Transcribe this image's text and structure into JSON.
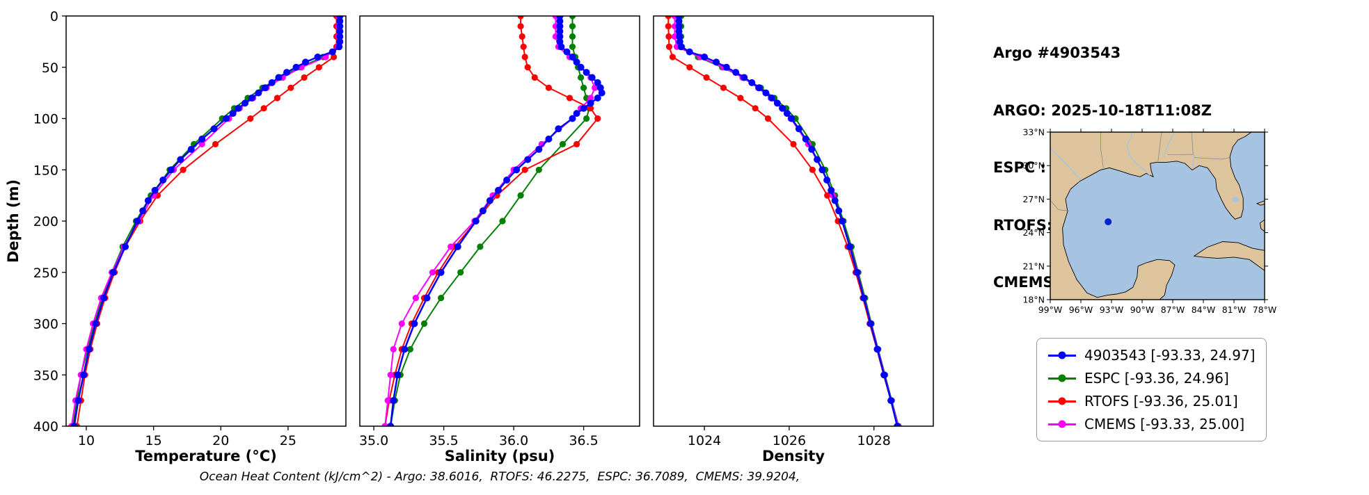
{
  "header": {
    "title": "Argo #4903543",
    "lines": [
      "ARGO: 2025-10-18T11:08Z",
      "ESPC : 2025-10-18T12:00Z",
      "RTOFS: 2025-10-18T12:00Z",
      "CMEMS: 2025-10-18T12:00Z"
    ]
  },
  "footer": "Ocean Heat Content (kJ/cm^2) - Argo: 38.6016,  RTOFS: 46.2275,  ESPC: 36.7089,  CMEMS: 39.9204,",
  "colors": {
    "argo": "#0000ff",
    "espc": "#008000",
    "rtofs": "#ff0000",
    "cmems": "#ff00ff"
  },
  "legend": {
    "items": [
      {
        "name": "4903543",
        "label": "4903543 [-93.33, 24.97]",
        "color": "#0000ff"
      },
      {
        "name": "ESPC",
        "label": "ESPC [-93.36, 24.96]",
        "color": "#008000"
      },
      {
        "name": "RTOFS",
        "label": "RTOFS [-93.36, 25.01]",
        "color": "#ff0000"
      },
      {
        "name": "CMEMS",
        "label": "CMEMS [-93.33, 25.00]",
        "color": "#ff00ff"
      }
    ]
  },
  "map": {
    "region": "Gulf of Mexico",
    "lon_range": [
      -99,
      -78
    ],
    "lat_range": [
      18,
      33
    ],
    "lat_ticks": [
      {
        "value": 33,
        "label": "33°N"
      },
      {
        "value": 30,
        "label": "30°N"
      },
      {
        "value": 27,
        "label": "27°N"
      },
      {
        "value": 24,
        "label": "24°N"
      },
      {
        "value": 21,
        "label": "21°N"
      },
      {
        "value": 18,
        "label": "18°N"
      }
    ],
    "lon_ticks": [
      {
        "value": -99,
        "label": "99°W"
      },
      {
        "value": -96,
        "label": "96°W"
      },
      {
        "value": -93,
        "label": "93°W"
      },
      {
        "value": -90,
        "label": "90°W"
      },
      {
        "value": -87,
        "label": "87°W"
      },
      {
        "value": -84,
        "label": "84°W"
      },
      {
        "value": -81,
        "label": "81°W"
      },
      {
        "value": -78,
        "label": "78°W"
      }
    ],
    "float_position": {
      "lon": -93.33,
      "lat": 24.97
    },
    "ocean_color": "#a6c3e1",
    "land_color": "#ddc49c",
    "float_color": "#0022cc"
  },
  "chart_data": [
    {
      "name": "temperature",
      "type": "line",
      "xlabel": "Temperature (°C)",
      "ylabel": "Depth (m)",
      "xlim": [
        8.5,
        29.3
      ],
      "ylim": [
        0,
        400
      ],
      "y_inverted": true,
      "grid": false,
      "xticks": [
        10,
        15,
        20,
        25
      ],
      "xtick_labels": [
        "10",
        "15",
        "20",
        "25"
      ],
      "yticks": [
        0,
        50,
        100,
        150,
        200,
        250,
        300,
        350,
        400
      ],
      "series": [
        {
          "name": "4903543",
          "color": "#0000ff",
          "zorder": 4,
          "line_width": 2.5,
          "marker_radius": 5,
          "depth": [
            0,
            5,
            10,
            15,
            20,
            25,
            30,
            35,
            40,
            45,
            50,
            55,
            60,
            65,
            70,
            75,
            80,
            85,
            90,
            95,
            100,
            110,
            120,
            130,
            140,
            150,
            160,
            170,
            180,
            190,
            200,
            225,
            250,
            275,
            300,
            325,
            350,
            375,
            400
          ],
          "values": [
            28.85,
            28.85,
            28.85,
            28.85,
            28.85,
            28.85,
            28.8,
            28.3,
            27.2,
            26.3,
            25.6,
            24.9,
            24.3,
            23.8,
            23.3,
            22.8,
            22.3,
            21.8,
            21.3,
            20.9,
            20.4,
            19.5,
            18.6,
            17.8,
            17.0,
            16.3,
            15.7,
            15.1,
            14.6,
            14.2,
            13.8,
            12.9,
            12.0,
            11.3,
            10.7,
            10.2,
            9.8,
            9.4,
            9.1
          ]
        },
        {
          "name": "ESPC",
          "color": "#008000",
          "zorder": 1,
          "line_width": 2,
          "marker_radius": 4.6,
          "depth": [
            0,
            10,
            20,
            30,
            40,
            50,
            60,
            70,
            80,
            90,
            100,
            125,
            150,
            175,
            200,
            225,
            250,
            275,
            300,
            325,
            350,
            375,
            400
          ],
          "values": [
            28.7,
            28.7,
            28.7,
            28.65,
            27.6,
            25.9,
            24.4,
            23.1,
            22.0,
            21.0,
            20.1,
            18.0,
            16.2,
            14.8,
            13.7,
            12.7,
            11.9,
            11.2,
            10.6,
            10.1,
            9.6,
            9.3,
            9.0
          ]
        },
        {
          "name": "RTOFS",
          "color": "#ff0000",
          "zorder": 2,
          "line_width": 2,
          "marker_radius": 4.6,
          "depth": [
            0,
            10,
            20,
            30,
            40,
            50,
            60,
            70,
            80,
            90,
            100,
            125,
            150,
            175,
            200,
            225,
            250,
            275,
            300,
            325,
            350,
            375,
            400
          ],
          "values": [
            28.6,
            28.6,
            28.6,
            28.6,
            28.4,
            27.3,
            26.2,
            25.2,
            24.2,
            23.2,
            22.2,
            19.6,
            17.2,
            15.3,
            14.0,
            12.9,
            12.1,
            11.4,
            10.8,
            10.3,
            9.9,
            9.6,
            9.3
          ]
        },
        {
          "name": "CMEMS",
          "color": "#ff00ff",
          "zorder": 3,
          "line_width": 2,
          "marker_radius": 4.6,
          "depth": [
            0,
            10,
            20,
            30,
            40,
            50,
            60,
            70,
            80,
            90,
            100,
            125,
            150,
            175,
            200,
            225,
            250,
            275,
            300,
            325,
            350,
            375,
            400
          ],
          "values": [
            28.75,
            28.75,
            28.75,
            28.7,
            27.8,
            26.0,
            24.6,
            23.4,
            22.4,
            21.4,
            20.6,
            18.6,
            16.5,
            15.0,
            13.9,
            12.8,
            11.9,
            11.1,
            10.5,
            10.0,
            9.6,
            9.2,
            8.9
          ]
        }
      ]
    },
    {
      "name": "salinity",
      "type": "line",
      "xlabel": "Salinity (psu)",
      "ylabel": "Depth (m)",
      "xlim": [
        34.9,
        36.9
      ],
      "ylim": [
        0,
        400
      ],
      "y_inverted": true,
      "grid": false,
      "xticks": [
        35.0,
        35.5,
        36.0,
        36.5
      ],
      "xtick_labels": [
        "35.0",
        "35.5",
        "36.0",
        "36.5"
      ],
      "yticks": [
        0,
        50,
        100,
        150,
        200,
        250,
        300,
        350,
        400
      ],
      "series": [
        {
          "name": "4903543",
          "color": "#0000ff",
          "zorder": 4,
          "line_width": 2.5,
          "marker_radius": 5,
          "depth": [
            0,
            5,
            10,
            15,
            20,
            25,
            30,
            35,
            40,
            45,
            50,
            55,
            60,
            65,
            70,
            75,
            80,
            85,
            90,
            95,
            100,
            110,
            120,
            130,
            140,
            150,
            160,
            170,
            180,
            190,
            200,
            225,
            250,
            275,
            300,
            325,
            350,
            375,
            400
          ],
          "values": [
            36.33,
            36.33,
            36.33,
            36.33,
            36.33,
            36.33,
            36.34,
            36.38,
            36.42,
            36.45,
            36.48,
            36.52,
            36.56,
            36.6,
            36.62,
            36.63,
            36.6,
            36.55,
            36.5,
            36.45,
            36.42,
            36.32,
            36.25,
            36.18,
            36.1,
            36.02,
            35.95,
            35.89,
            35.83,
            35.78,
            35.73,
            35.6,
            35.48,
            35.38,
            35.29,
            35.22,
            35.17,
            35.14,
            35.12
          ]
        },
        {
          "name": "ESPC",
          "color": "#008000",
          "zorder": 1,
          "line_width": 2,
          "marker_radius": 4.6,
          "depth": [
            0,
            10,
            20,
            30,
            40,
            50,
            60,
            70,
            80,
            90,
            100,
            125,
            150,
            175,
            200,
            225,
            250,
            275,
            300,
            325,
            350,
            375,
            400
          ],
          "values": [
            36.42,
            36.42,
            36.42,
            36.42,
            36.44,
            36.46,
            36.48,
            36.5,
            36.52,
            36.54,
            36.52,
            36.35,
            36.18,
            36.05,
            35.92,
            35.76,
            35.62,
            35.48,
            35.36,
            35.26,
            35.19,
            35.15,
            35.12
          ]
        },
        {
          "name": "RTOFS",
          "color": "#ff0000",
          "zorder": 2,
          "line_width": 2,
          "marker_radius": 4.6,
          "depth": [
            0,
            10,
            20,
            30,
            40,
            50,
            60,
            70,
            80,
            90,
            100,
            125,
            150,
            175,
            200,
            225,
            250,
            275,
            300,
            325,
            350,
            375,
            400
          ],
          "values": [
            36.05,
            36.05,
            36.06,
            36.07,
            36.08,
            36.1,
            36.15,
            36.25,
            36.4,
            36.55,
            36.6,
            36.45,
            36.08,
            35.88,
            35.73,
            35.58,
            35.46,
            35.36,
            35.27,
            35.2,
            35.15,
            35.11,
            35.08
          ]
        },
        {
          "name": "CMEMS",
          "color": "#ff00ff",
          "zorder": 3,
          "line_width": 2,
          "marker_radius": 4.6,
          "depth": [
            0,
            10,
            20,
            30,
            40,
            50,
            60,
            70,
            80,
            90,
            100,
            125,
            150,
            175,
            200,
            225,
            250,
            275,
            300,
            325,
            350,
            375,
            400
          ],
          "values": [
            36.3,
            36.3,
            36.3,
            36.32,
            36.4,
            36.48,
            36.55,
            36.58,
            36.55,
            36.48,
            36.42,
            36.2,
            36.0,
            35.85,
            35.72,
            35.55,
            35.42,
            35.3,
            35.2,
            35.14,
            35.12,
            35.1,
            35.08
          ]
        }
      ]
    },
    {
      "name": "density",
      "type": "line",
      "xlabel": "Density",
      "ylabel": "Depth (m)",
      "xlim": [
        1022.8,
        1029.4
      ],
      "ylim": [
        0,
        400
      ],
      "y_inverted": true,
      "grid": false,
      "xticks": [
        1024,
        1026,
        1028
      ],
      "xtick_labels": [
        "1024",
        "1026",
        "1028"
      ],
      "yticks": [
        0,
        50,
        100,
        150,
        200,
        250,
        300,
        350,
        400
      ],
      "series": [
        {
          "name": "4903543",
          "color": "#0000ff",
          "zorder": 4,
          "line_width": 2.5,
          "marker_radius": 5,
          "depth": [
            0,
            5,
            10,
            15,
            20,
            25,
            30,
            35,
            40,
            45,
            50,
            55,
            60,
            65,
            70,
            75,
            80,
            85,
            90,
            95,
            100,
            110,
            120,
            130,
            140,
            150,
            160,
            170,
            180,
            190,
            200,
            225,
            250,
            275,
            300,
            325,
            350,
            375,
            400
          ],
          "values": [
            1023.4,
            1023.4,
            1023.4,
            1023.4,
            1023.41,
            1023.42,
            1023.45,
            1023.65,
            1024.0,
            1024.28,
            1024.52,
            1024.74,
            1024.94,
            1025.12,
            1025.29,
            1025.45,
            1025.59,
            1025.72,
            1025.84,
            1025.95,
            1026.05,
            1026.23,
            1026.39,
            1026.53,
            1026.66,
            1026.78,
            1026.89,
            1026.99,
            1027.08,
            1027.17,
            1027.25,
            1027.43,
            1027.6,
            1027.76,
            1027.92,
            1028.08,
            1028.24,
            1028.4,
            1028.55
          ]
        },
        {
          "name": "ESPC",
          "color": "#008000",
          "zorder": 1,
          "line_width": 2,
          "marker_radius": 4.6,
          "depth": [
            0,
            10,
            20,
            30,
            40,
            50,
            60,
            70,
            80,
            90,
            100,
            125,
            150,
            175,
            200,
            225,
            250,
            275,
            300,
            325,
            350,
            375,
            400
          ],
          "values": [
            1023.45,
            1023.45,
            1023.45,
            1023.47,
            1023.85,
            1024.42,
            1024.92,
            1025.33,
            1025.65,
            1025.93,
            1026.15,
            1026.55,
            1026.85,
            1027.08,
            1027.28,
            1027.47,
            1027.63,
            1027.79,
            1027.94,
            1028.1,
            1028.26,
            1028.42,
            1028.58
          ]
        },
        {
          "name": "RTOFS",
          "color": "#ff0000",
          "zorder": 2,
          "line_width": 2,
          "marker_radius": 4.6,
          "depth": [
            0,
            10,
            20,
            30,
            40,
            50,
            60,
            70,
            80,
            90,
            100,
            125,
            150,
            175,
            200,
            225,
            250,
            275,
            300,
            325,
            350,
            375,
            400
          ],
          "values": [
            1023.15,
            1023.15,
            1023.16,
            1023.17,
            1023.25,
            1023.65,
            1024.05,
            1024.45,
            1024.85,
            1025.2,
            1025.5,
            1026.1,
            1026.55,
            1026.9,
            1027.15,
            1027.38,
            1027.57,
            1027.74,
            1027.9,
            1028.07,
            1028.23,
            1028.4,
            1028.56
          ]
        },
        {
          "name": "CMEMS",
          "color": "#ff00ff",
          "zorder": 3,
          "line_width": 2,
          "marker_radius": 4.6,
          "depth": [
            0,
            10,
            20,
            30,
            40,
            50,
            60,
            70,
            80,
            90,
            100,
            125,
            150,
            175,
            200,
            225,
            250,
            275,
            300,
            325,
            350,
            375,
            400
          ],
          "values": [
            1023.3,
            1023.3,
            1023.3,
            1023.35,
            1023.9,
            1024.45,
            1024.9,
            1025.27,
            1025.57,
            1025.83,
            1026.04,
            1026.45,
            1026.78,
            1027.03,
            1027.25,
            1027.44,
            1027.61,
            1027.77,
            1027.93,
            1028.09,
            1028.25,
            1028.41,
            1028.57
          ]
        }
      ]
    }
  ]
}
